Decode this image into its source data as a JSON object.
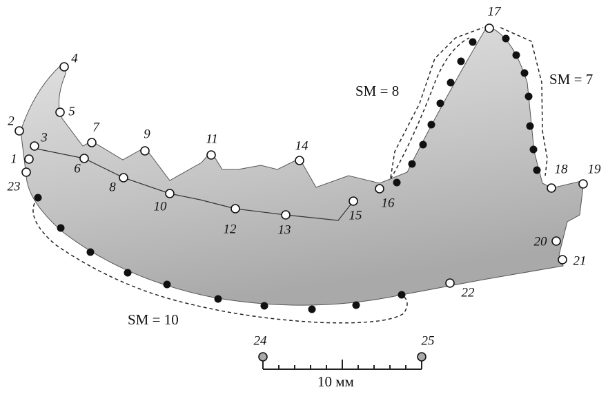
{
  "landmarks": [
    "1",
    "2",
    "3",
    "4",
    "5",
    "6",
    "7",
    "8",
    "9",
    "10",
    "11",
    "12",
    "13",
    "14",
    "15",
    "16",
    "17",
    "18",
    "19",
    "20",
    "21",
    "22",
    "23",
    "24",
    "25"
  ],
  "semilandmarks": {
    "upper_front": "SM = 8",
    "upper_back": "SM = 7",
    "lower": "SM = 10"
  },
  "scale_bar": "10 мм"
}
